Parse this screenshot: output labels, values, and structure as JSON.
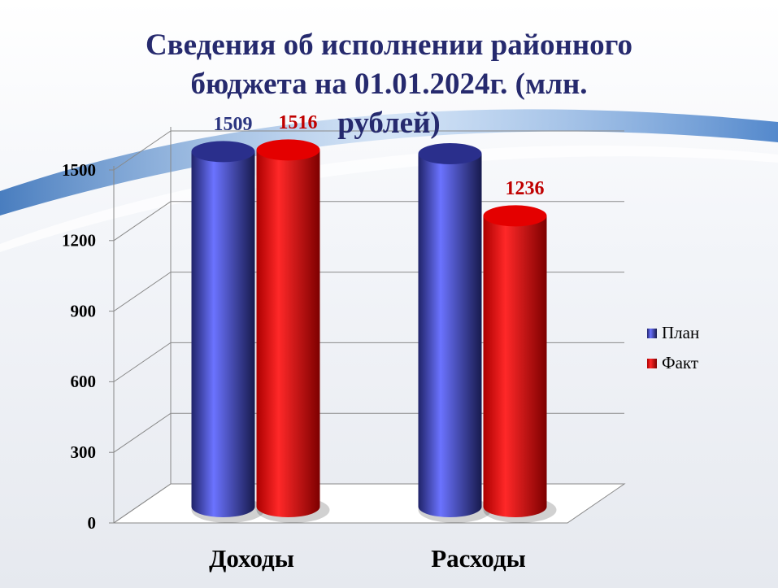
{
  "chart_data": {
    "type": "bar3d",
    "title": "Сведения об исполнении районного бюджета на 01.01.2024г. (млн. рублей)",
    "categories": [
      "Доходы",
      "Расходы"
    ],
    "series": [
      {
        "name": "План",
        "color": "#2a2f8c",
        "label_color": "#2b3580",
        "values": [
          1509,
          1500
        ],
        "show_labels": [
          true,
          false
        ]
      },
      {
        "name": "Факт",
        "color": "#e40000",
        "label_color": "#c00000",
        "values": [
          1516,
          1236
        ],
        "show_labels": [
          true,
          true
        ]
      }
    ],
    "ylim": [
      0,
      1500
    ],
    "yticks": [
      0,
      300,
      600,
      900,
      1200,
      1500
    ],
    "grid": true,
    "legend": "right"
  }
}
